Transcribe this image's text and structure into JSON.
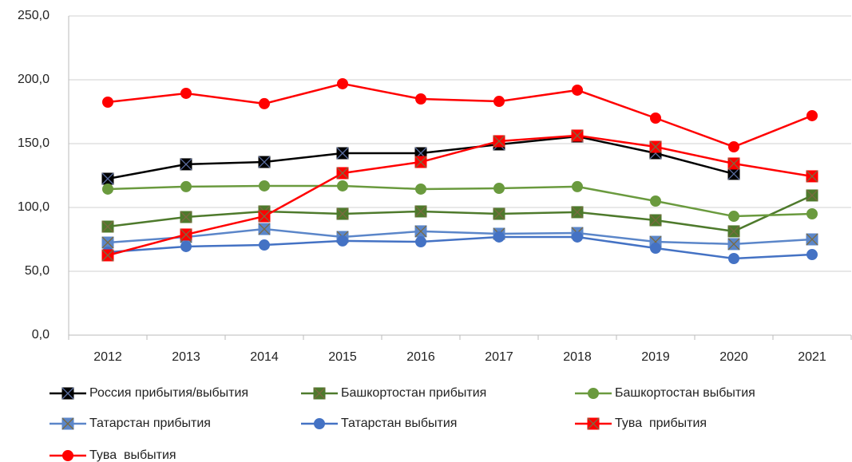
{
  "chart_data": {
    "type": "line",
    "categories": [
      "2012",
      "2013",
      "2014",
      "2015",
      "2016",
      "2017",
      "2018",
      "2019",
      "2020",
      "2021"
    ],
    "ylim": [
      0,
      250
    ],
    "yticks": [
      {
        "value": 0,
        "label": "0,0"
      },
      {
        "value": 50,
        "label": "50,0"
      },
      {
        "value": 100,
        "label": "100,0"
      },
      {
        "value": 150,
        "label": "150,0"
      },
      {
        "value": 200,
        "label": "200,0"
      },
      {
        "value": 250,
        "label": "250,0"
      }
    ],
    "grid": true,
    "legend": "bottom",
    "series": [
      {
        "name": "Россия прибытия/выбытия",
        "color": "#000000",
        "marker": "square-x",
        "values": [
          122.5,
          133.8,
          135.6,
          142.5,
          142.5,
          149.4,
          155.6,
          142.5,
          126.3,
          null
        ]
      },
      {
        "name": "Башкортостан прибытия",
        "color": "#4e7a2c",
        "marker": "square-x",
        "values": [
          85.0,
          92.5,
          96.9,
          95.0,
          96.9,
          95.0,
          96.3,
          90.0,
          81.3,
          109.4
        ]
      },
      {
        "name": "Башкортостан выбытия",
        "color": "#6a9a3e",
        "marker": "circle",
        "values": [
          114.4,
          116.3,
          116.9,
          116.9,
          114.4,
          115.0,
          116.3,
          105.0,
          93.1,
          95.0
        ]
      },
      {
        "name": "Татарстан прибытия",
        "color": "#5b86c9",
        "marker": "square-x",
        "values": [
          72.5,
          76.9,
          83.1,
          76.9,
          81.3,
          79.4,
          80.0,
          73.1,
          71.3,
          75.0
        ]
      },
      {
        "name": "Татарстан выбытия",
        "color": "#4472c4",
        "marker": "circle",
        "values": [
          65.0,
          69.4,
          70.6,
          73.8,
          73.1,
          76.9,
          76.9,
          68.1,
          60.0,
          63.1
        ]
      },
      {
        "name": "Тува  прибытия",
        "color": "#ff0000",
        "marker": "square-x",
        "values": [
          62.5,
          78.8,
          93.1,
          126.9,
          135.6,
          151.9,
          156.3,
          147.5,
          134.4,
          124.4
        ]
      },
      {
        "name": "Тува  выбытия",
        "color": "#ff0000",
        "marker": "circle",
        "values": [
          182.5,
          189.4,
          181.3,
          196.9,
          185.0,
          183.1,
          191.9,
          170.0,
          147.5,
          171.9
        ]
      }
    ]
  }
}
